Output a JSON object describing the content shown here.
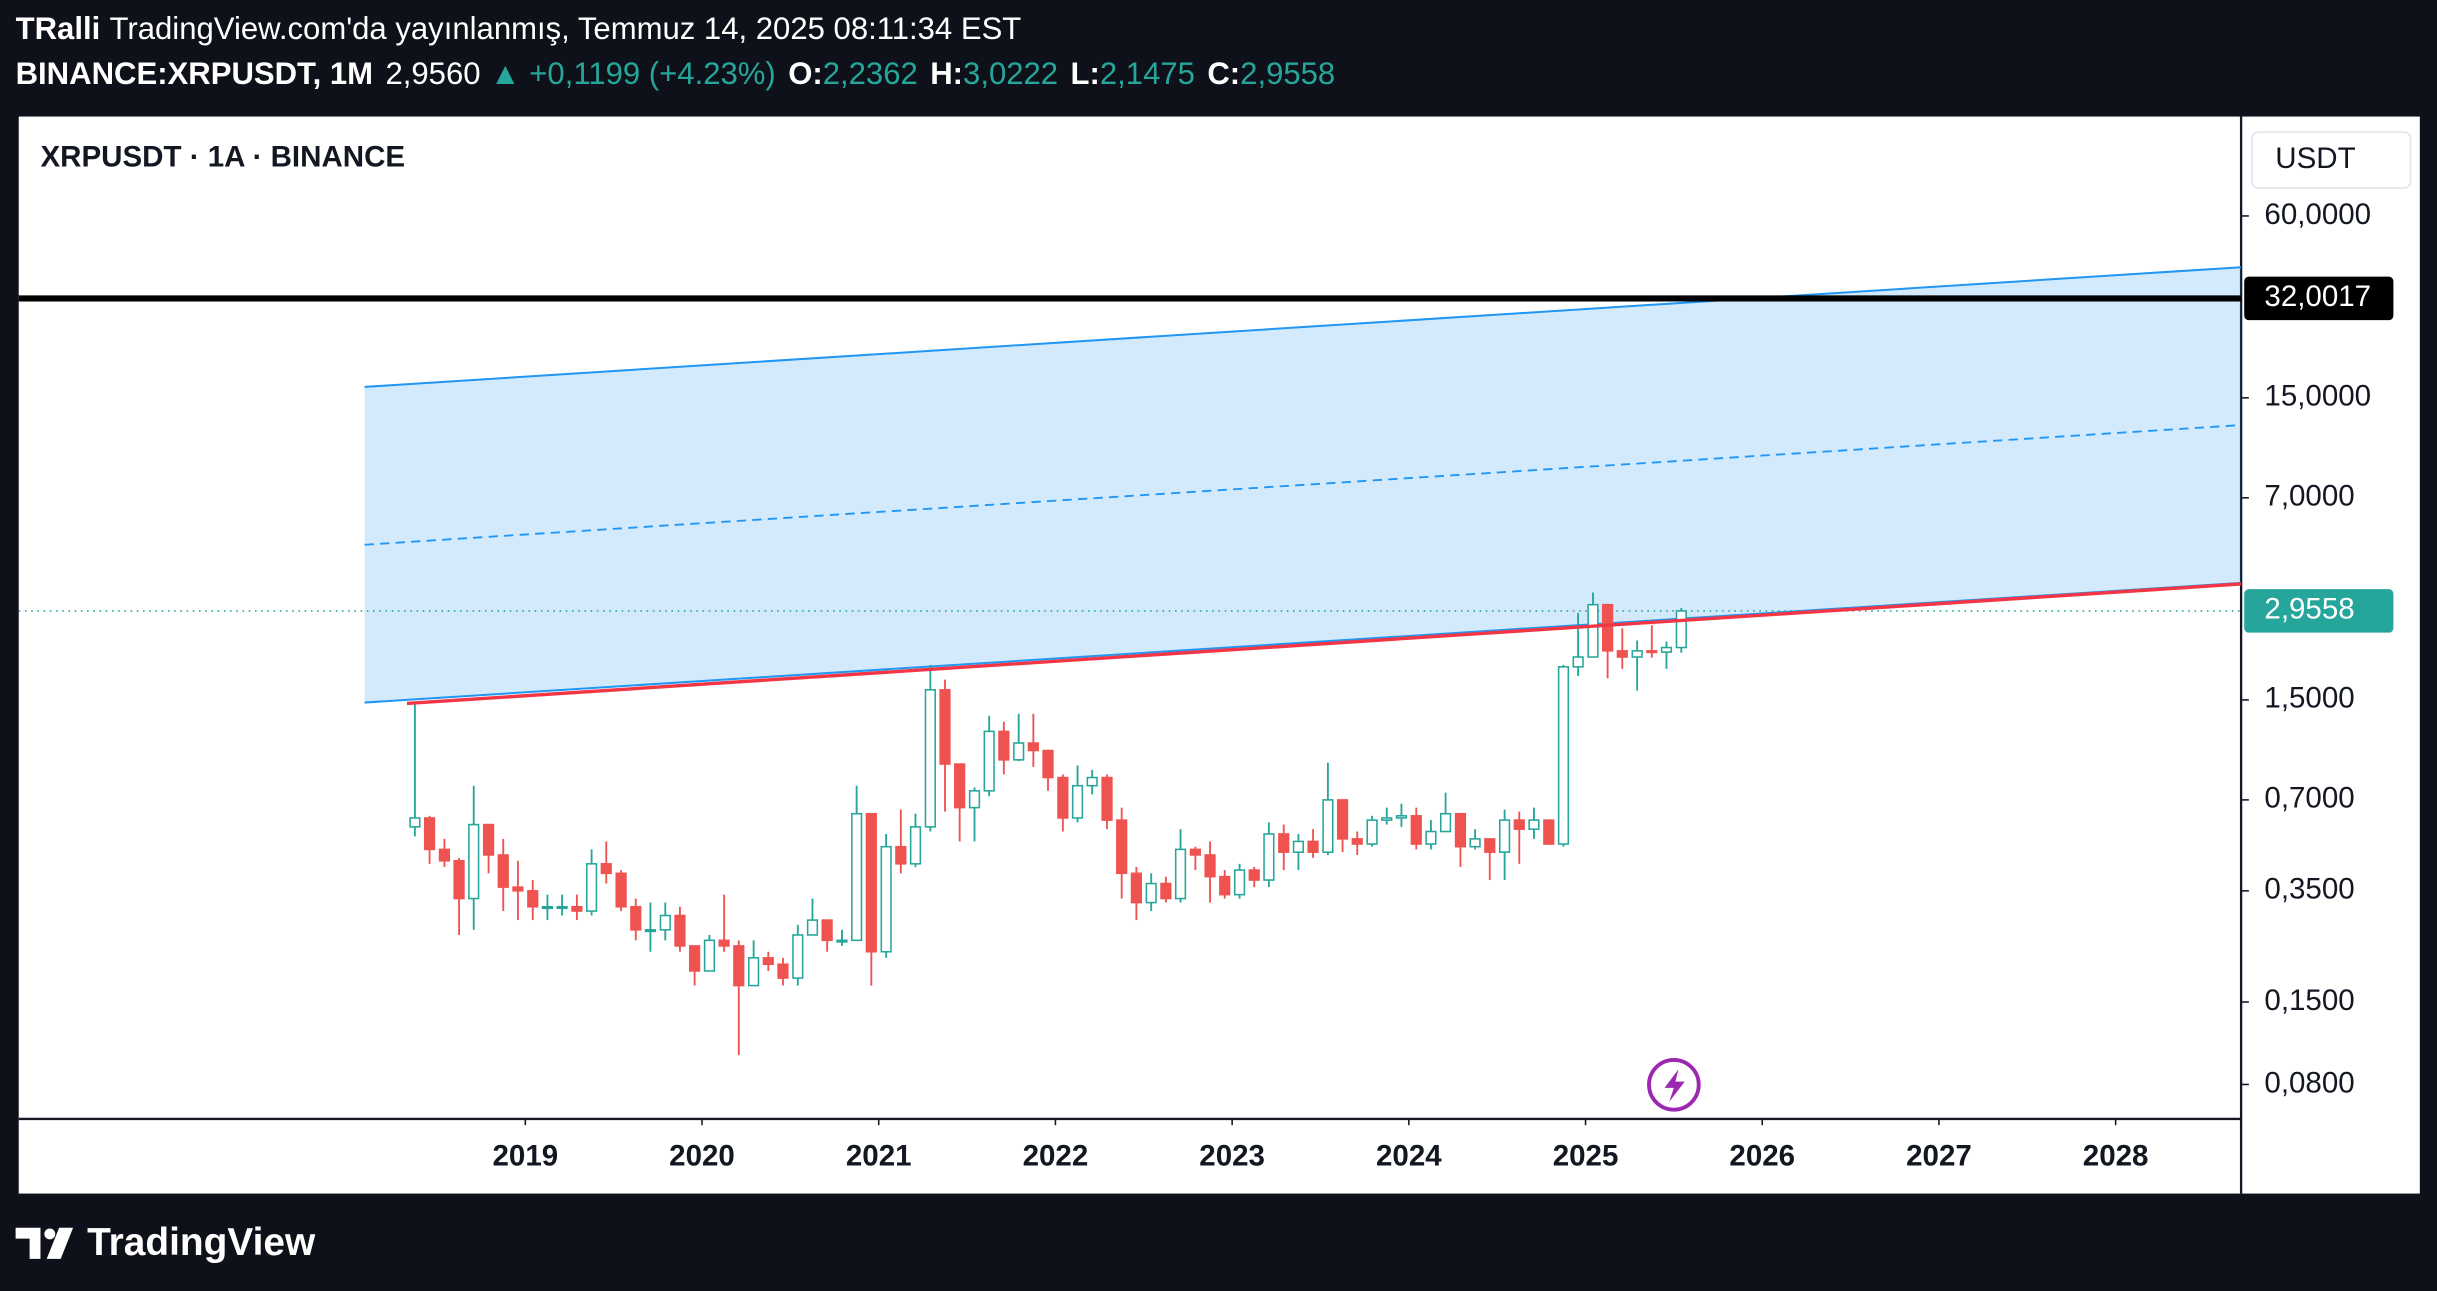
{
  "header": {
    "author": "TRalli",
    "published": "TradingView.com'da yayınlanmış, Temmuz 14, 2025 08:11:34 EST",
    "symbol": "BINANCE:XRPUSDT, 1M",
    "last": "2,9560",
    "change": "▲ +0,1199 (+4.23%)",
    "ohlc": [
      {
        "label": "O:",
        "value": "2,2362"
      },
      {
        "label": "H:",
        "value": "3,0222"
      },
      {
        "label": "L:",
        "value": "2,1475"
      },
      {
        "label": "C:",
        "value": "2,9558"
      }
    ]
  },
  "footer": {
    "brand": "TradingView"
  },
  "chart_data": {
    "type": "candlestick",
    "title": "XRPUSDT · 1A · BINANCE",
    "currency": "USDT",
    "log_scale": true,
    "xlim": [
      2016.133,
      2028.71
    ],
    "xticks": [
      2019,
      2020,
      2021,
      2022,
      2023,
      2024,
      2025,
      2026,
      2027,
      2028
    ],
    "ylim": [
      0.0615,
      128
    ],
    "yticks": [
      {
        "value": 0.08,
        "label": "0,0800"
      },
      {
        "value": 0.15,
        "label": "0,1500"
      },
      {
        "value": 0.35,
        "label": "0,3500"
      },
      {
        "value": 0.7,
        "label": "0,7000"
      },
      {
        "value": 1.5,
        "label": "1,5000"
      },
      {
        "value": 7,
        "label": "7,0000"
      },
      {
        "value": 15,
        "label": "15,0000"
      },
      {
        "value": 60,
        "label": "60,0000"
      }
    ],
    "up_color": "#26a69a",
    "down_color": "#ef5350",
    "x": [
      2018.375,
      2018.458,
      2018.542,
      2018.625,
      2018.708,
      2018.792,
      2018.875,
      2018.958,
      2019.042,
      2019.125,
      2019.208,
      2019.292,
      2019.375,
      2019.458,
      2019.542,
      2019.625,
      2019.708,
      2019.792,
      2019.875,
      2019.958,
      2020.042,
      2020.125,
      2020.208,
      2020.292,
      2020.375,
      2020.458,
      2020.542,
      2020.625,
      2020.708,
      2020.792,
      2020.875,
      2020.958,
      2021.042,
      2021.125,
      2021.208,
      2021.292,
      2021.375,
      2021.458,
      2021.542,
      2021.625,
      2021.708,
      2021.792,
      2021.875,
      2021.958,
      2022.042,
      2022.125,
      2022.208,
      2022.292,
      2022.375,
      2022.458,
      2022.542,
      2022.625,
      2022.708,
      2022.792,
      2022.875,
      2022.958,
      2023.042,
      2023.125,
      2023.208,
      2023.292,
      2023.375,
      2023.458,
      2023.542,
      2023.625,
      2023.708,
      2023.792,
      2023.875,
      2023.958,
      2024.042,
      2024.125,
      2024.208,
      2024.292,
      2024.375,
      2024.458,
      2024.542,
      2024.625,
      2024.708,
      2024.792,
      2024.875,
      2024.958,
      2025.042,
      2025.125,
      2025.208,
      2025.292,
      2025.375,
      2025.458,
      2025.542
    ],
    "open": [
      0.57,
      0.61,
      0.48,
      0.44,
      0.33,
      0.58,
      0.46,
      0.36,
      0.35,
      0.31,
      0.31,
      0.31,
      0.3,
      0.43,
      0.4,
      0.31,
      0.26,
      0.26,
      0.29,
      0.23,
      0.19,
      0.24,
      0.23,
      0.17,
      0.21,
      0.2,
      0.18,
      0.25,
      0.28,
      0.24,
      0.24,
      0.63,
      0.22,
      0.49,
      0.43,
      0.57,
      1.62,
      0.92,
      0.66,
      0.75,
      1.18,
      0.95,
      1.08,
      1.02,
      0.83,
      0.61,
      0.78,
      0.83,
      0.6,
      0.4,
      0.32,
      0.37,
      0.33,
      0.48,
      0.46,
      0.39,
      0.34,
      0.41,
      0.38,
      0.54,
      0.47,
      0.51,
      0.47,
      0.7,
      0.52,
      0.5,
      0.6,
      0.61,
      0.62,
      0.5,
      0.55,
      0.63,
      0.49,
      0.52,
      0.47,
      0.6,
      0.56,
      0.6,
      0.5,
      1.93,
      2.08,
      3.1,
      2.18,
      2.08,
      2.18,
      2.16,
      2.2362
    ],
    "high": [
      1.45,
      0.62,
      0.52,
      0.45,
      0.78,
      0.58,
      0.52,
      0.44,
      0.38,
      0.34,
      0.34,
      0.34,
      0.48,
      0.51,
      0.41,
      0.33,
      0.32,
      0.32,
      0.31,
      0.23,
      0.25,
      0.34,
      0.24,
      0.24,
      0.22,
      0.21,
      0.27,
      0.33,
      0.28,
      0.26,
      0.78,
      0.63,
      0.54,
      0.65,
      0.63,
      1.96,
      1.75,
      0.9,
      0.77,
      1.33,
      1.27,
      1.35,
      1.35,
      1.01,
      0.85,
      0.91,
      0.88,
      0.85,
      0.66,
      0.42,
      0.4,
      0.39,
      0.56,
      0.49,
      0.51,
      0.41,
      0.43,
      0.42,
      0.59,
      0.58,
      0.54,
      0.56,
      0.93,
      0.7,
      0.55,
      0.62,
      0.66,
      0.68,
      0.66,
      0.6,
      0.74,
      0.63,
      0.56,
      0.52,
      0.65,
      0.64,
      0.66,
      0.6,
      1.96,
      2.91,
      3.4,
      3.12,
      2.59,
      2.36,
      2.65,
      2.34,
      3.0222
    ],
    "low": [
      0.53,
      0.43,
      0.42,
      0.25,
      0.26,
      0.4,
      0.3,
      0.28,
      0.28,
      0.28,
      0.29,
      0.28,
      0.29,
      0.37,
      0.3,
      0.24,
      0.22,
      0.24,
      0.22,
      0.17,
      0.19,
      0.22,
      0.1,
      0.17,
      0.19,
      0.17,
      0.17,
      0.25,
      0.22,
      0.23,
      0.24,
      0.17,
      0.21,
      0.4,
      0.42,
      0.55,
      0.64,
      0.51,
      0.51,
      0.72,
      0.85,
      0.94,
      0.9,
      0.75,
      0.55,
      0.59,
      0.73,
      0.56,
      0.33,
      0.28,
      0.3,
      0.32,
      0.32,
      0.41,
      0.32,
      0.33,
      0.33,
      0.36,
      0.36,
      0.41,
      0.41,
      0.45,
      0.46,
      0.47,
      0.46,
      0.49,
      0.58,
      0.57,
      0.48,
      0.48,
      0.55,
      0.42,
      0.48,
      0.38,
      0.38,
      0.43,
      0.52,
      0.5,
      0.49,
      1.8,
      2.27,
      1.77,
      1.9,
      1.61,
      2.07,
      1.9,
      2.1475
    ],
    "close": [
      0.61,
      0.48,
      0.44,
      0.33,
      0.58,
      0.46,
      0.36,
      0.35,
      0.31,
      0.31,
      0.31,
      0.3,
      0.43,
      0.4,
      0.31,
      0.26,
      0.26,
      0.29,
      0.23,
      0.19,
      0.24,
      0.23,
      0.17,
      0.21,
      0.2,
      0.18,
      0.25,
      0.28,
      0.24,
      0.24,
      0.63,
      0.22,
      0.49,
      0.43,
      0.57,
      1.62,
      0.92,
      0.66,
      0.75,
      1.18,
      0.95,
      1.08,
      1.02,
      0.83,
      0.61,
      0.78,
      0.83,
      0.6,
      0.4,
      0.32,
      0.37,
      0.33,
      0.48,
      0.46,
      0.39,
      0.34,
      0.41,
      0.38,
      0.54,
      0.47,
      0.51,
      0.47,
      0.7,
      0.52,
      0.5,
      0.6,
      0.61,
      0.62,
      0.5,
      0.55,
      0.63,
      0.49,
      0.52,
      0.47,
      0.6,
      0.56,
      0.6,
      0.5,
      1.93,
      2.08,
      3.1,
      2.18,
      2.08,
      2.18,
      2.16,
      2.2362,
      2.9558
    ],
    "channel": {
      "x": [
        2018.09,
        2028.71
      ],
      "lower": [
        1.47,
        3.66
      ],
      "upper": [
        16.3,
        40.6
      ],
      "color": "#2196f3"
    },
    "trendline": {
      "x": [
        2018.33,
        2028.71
      ],
      "y": [
        1.46,
        3.63
      ],
      "color": "#f23645"
    },
    "horizontal_line": {
      "value": 32.0017,
      "label": "32,0017",
      "color": "#000000"
    },
    "last_price": {
      "value": 2.9558,
      "label": "2,9558"
    }
  }
}
